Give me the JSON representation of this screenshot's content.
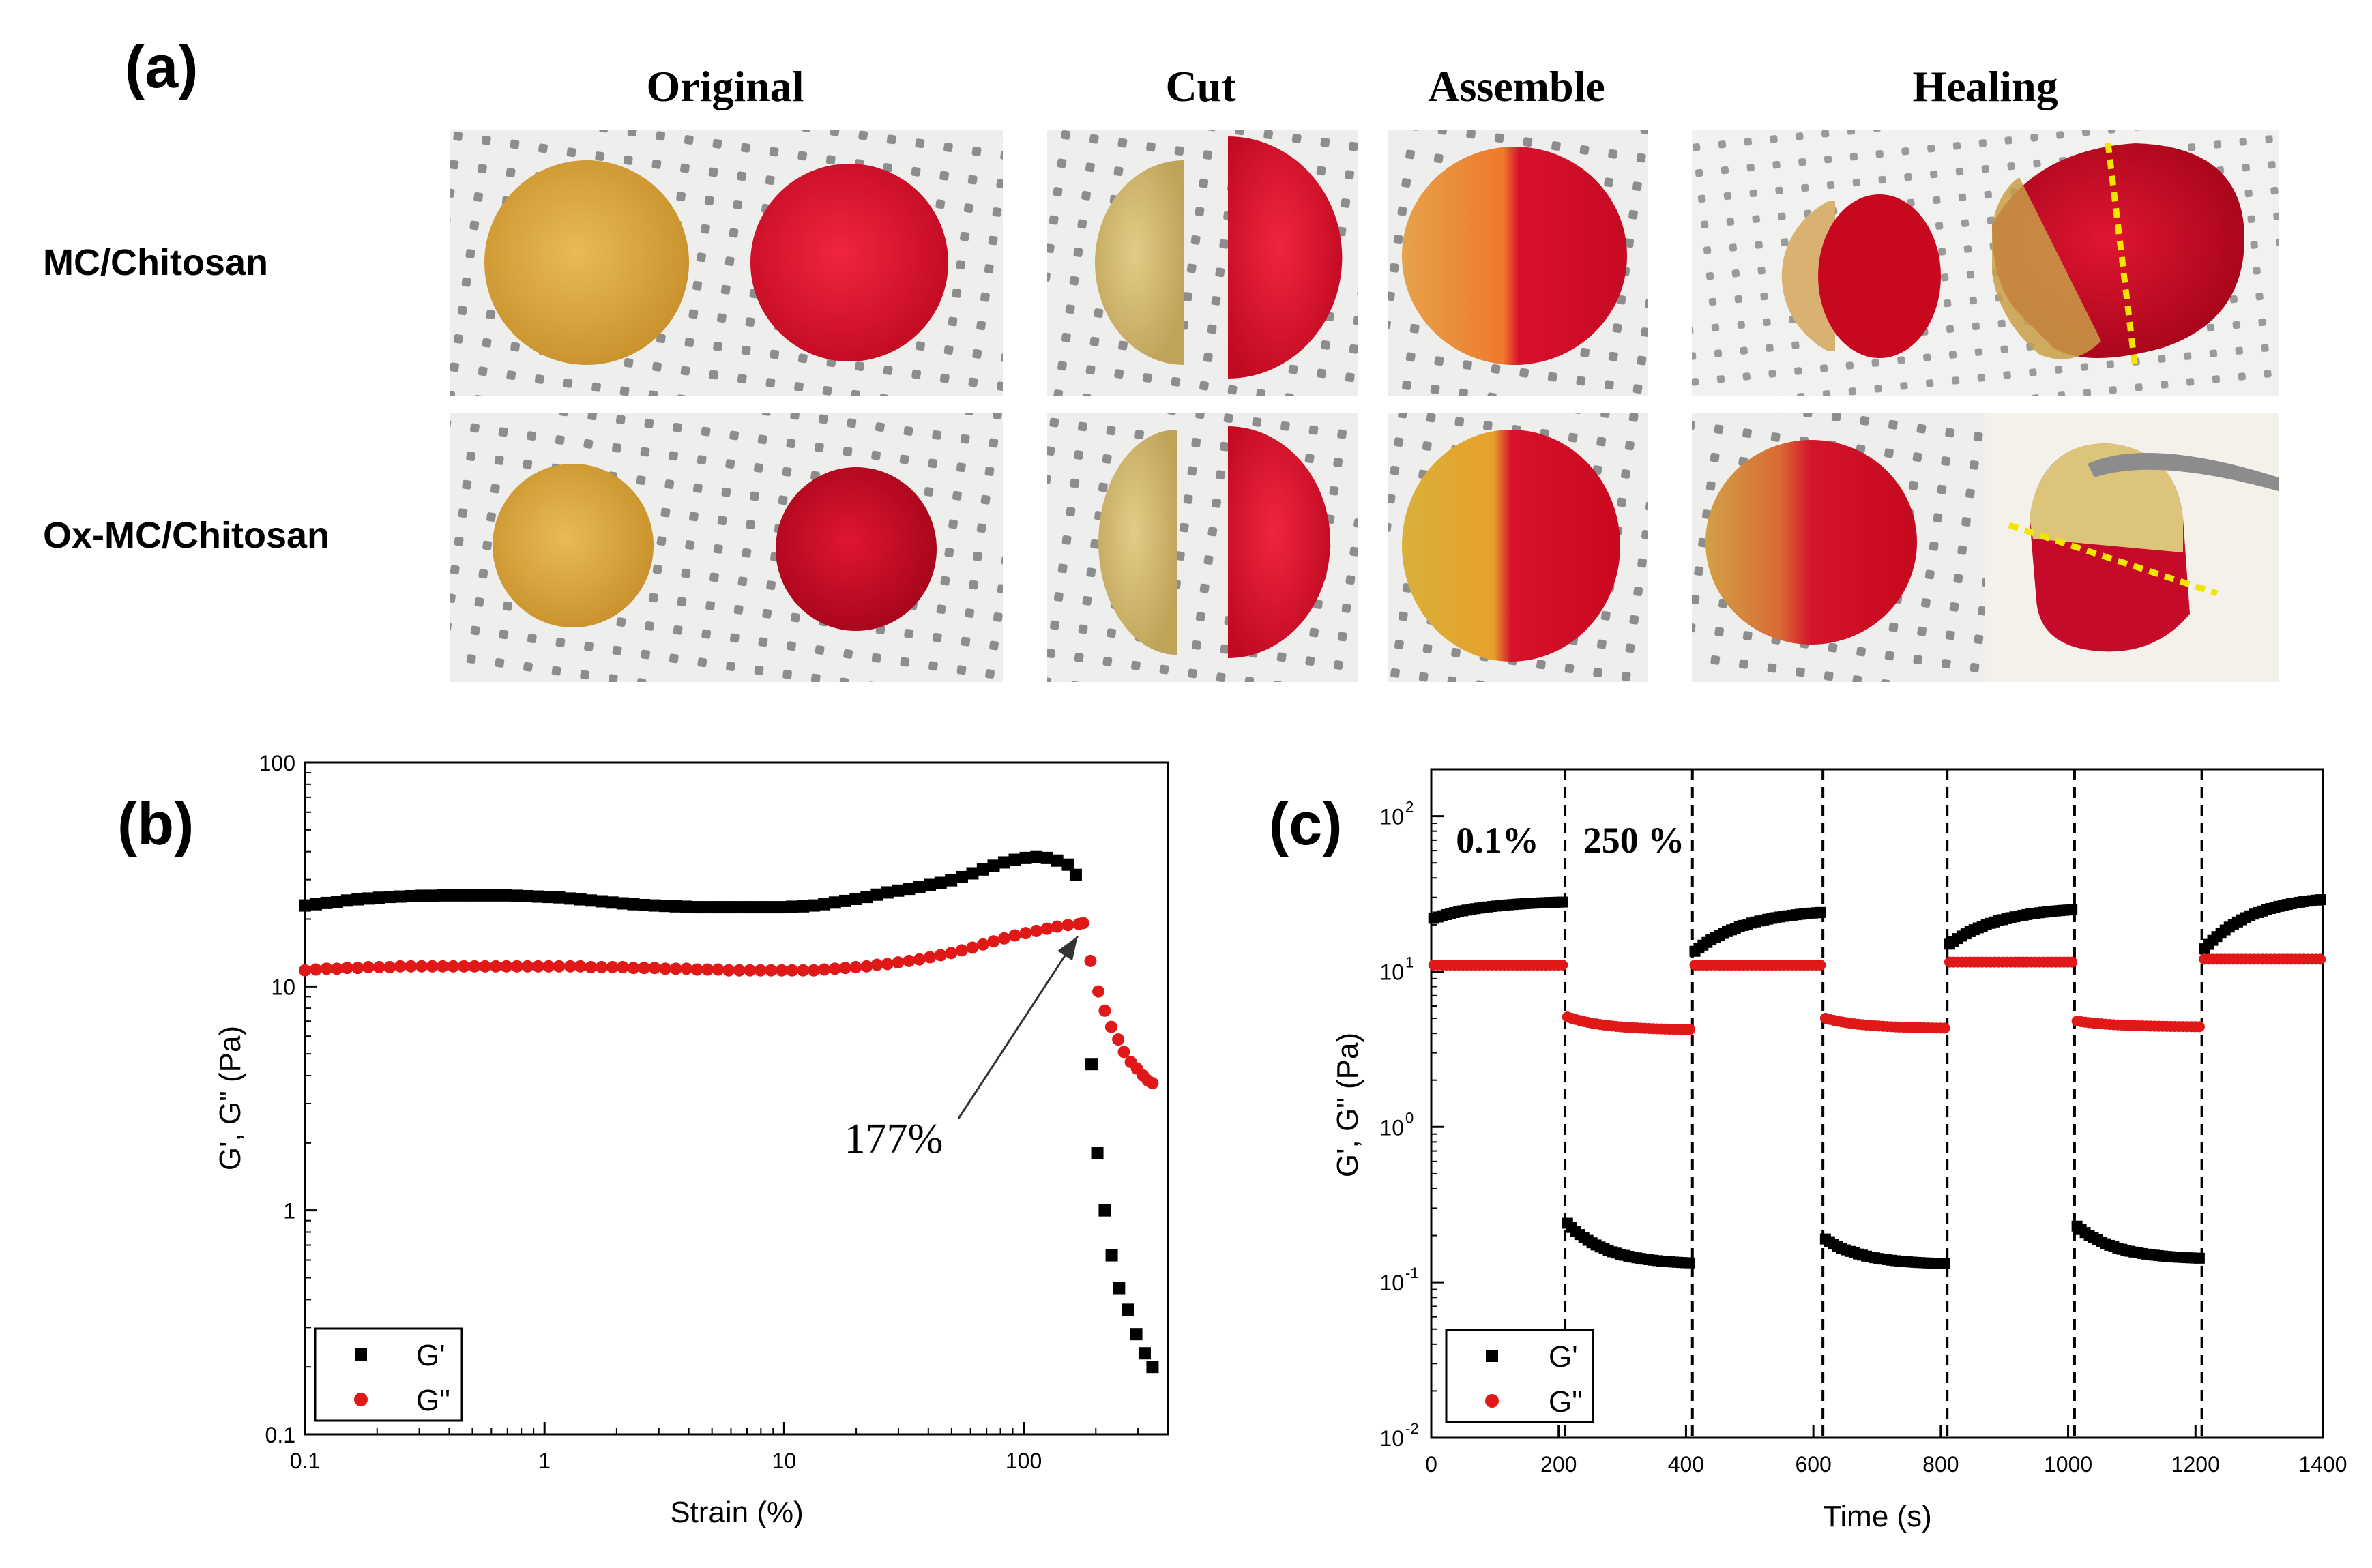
{
  "panel_a": {
    "label": "(a)",
    "columns": [
      "Original",
      "Cut",
      "Assemble",
      "Healing"
    ],
    "rows": [
      "MC/Chitosan",
      "Ox-MC/Chitosan"
    ]
  },
  "colors": {
    "yellow_gel": "#d9a73c",
    "red_gel": "#d4102c",
    "dark_red_gel": "#c3071f",
    "mesh_bg": "#ececec",
    "dot": "#8a8a8a",
    "g_prime": "#000000",
    "g_double": "#e01818",
    "guide": "#f2e600"
  },
  "chart_data": [
    {
      "id": "b",
      "label": "(b)",
      "type": "scatter",
      "xlabel": "Strain (%)",
      "ylabel": "G', G\" (Pa)",
      "xscale": "log",
      "yscale": "log",
      "xlim": [
        0.1,
        400
      ],
      "ylim": [
        0.1,
        100
      ],
      "xticks": [
        "0.1",
        "1",
        "10",
        "100"
      ],
      "yticks": [
        "0.1",
        "1",
        "10",
        "100"
      ],
      "annotation": "177%",
      "annotation_target": [
        177,
        19
      ],
      "legend": [
        "G'",
        "G\""
      ],
      "legend_position": "bottom-left",
      "series": [
        {
          "name": "G'",
          "marker": "square",
          "x": [
            0.1,
            0.111,
            0.123,
            0.136,
            0.15,
            0.166,
            0.184,
            0.204,
            0.226,
            0.25,
            0.277,
            0.307,
            0.34,
            0.376,
            0.416,
            0.461,
            0.51,
            0.565,
            0.626,
            0.693,
            0.767,
            0.849,
            0.94,
            1.04,
            1.15,
            1.28,
            1.41,
            1.56,
            1.73,
            1.92,
            2.12,
            2.35,
            2.6,
            2.88,
            3.19,
            3.53,
            3.91,
            4.33,
            4.79,
            5.3,
            5.87,
            6.5,
            7.2,
            7.97,
            8.82,
            9.77,
            10.8,
            12,
            13.3,
            14.7,
            16.3,
            18,
            19.9,
            22.1,
            24.4,
            27,
            29.9,
            33.2,
            36.7,
            40.6,
            45,
            49.8,
            55.2,
            61.1,
            67.6,
            74.9,
            82.9,
            91.8,
            102,
            113,
            125,
            138,
            153,
            165,
            192,
            203,
            218,
            233,
            250,
            272,
            295,
            320,
            345
          ],
          "y": [
            23,
            23.3,
            23.6,
            23.9,
            24.2,
            24.5,
            24.7,
            24.9,
            25.1,
            25.2,
            25.3,
            25.4,
            25.4,
            25.5,
            25.5,
            25.5,
            25.5,
            25.5,
            25.5,
            25.5,
            25.4,
            25.3,
            25.2,
            25.1,
            25,
            24.7,
            24.5,
            24.2,
            24,
            23.7,
            23.5,
            23.3,
            23.1,
            23,
            22.9,
            22.8,
            22.7,
            22.6,
            22.6,
            22.6,
            22.6,
            22.6,
            22.6,
            22.6,
            22.6,
            22.6,
            22.7,
            22.8,
            23,
            23.3,
            23.7,
            24.1,
            24.6,
            25.1,
            25.7,
            26.3,
            26.8,
            27.3,
            27.8,
            28.4,
            29,
            29.8,
            30.8,
            32,
            33.3,
            34.6,
            35.8,
            36.8,
            37.5,
            37.8,
            37.5,
            36.5,
            35,
            31.5,
            4.5,
            1.8,
            1.0,
            0.63,
            0.45,
            0.36,
            0.28,
            0.23,
            0.2
          ]
        },
        {
          "name": "G\"",
          "marker": "circle",
          "x": [
            0.1,
            0.111,
            0.123,
            0.136,
            0.15,
            0.166,
            0.184,
            0.204,
            0.226,
            0.25,
            0.277,
            0.307,
            0.34,
            0.376,
            0.416,
            0.461,
            0.51,
            0.565,
            0.626,
            0.693,
            0.767,
            0.849,
            0.94,
            1.04,
            1.15,
            1.28,
            1.41,
            1.56,
            1.73,
            1.92,
            2.12,
            2.35,
            2.6,
            2.88,
            3.19,
            3.53,
            3.91,
            4.33,
            4.79,
            5.3,
            5.87,
            6.5,
            7.2,
            7.97,
            8.82,
            9.77,
            10.8,
            12,
            13.3,
            14.7,
            16.3,
            18,
            19.9,
            22.1,
            24.4,
            27,
            29.9,
            33.2,
            36.7,
            40.6,
            45,
            49.8,
            55.2,
            61.1,
            67.6,
            74.9,
            82.9,
            91.8,
            102,
            113,
            125,
            138,
            153,
            170,
            177,
            190,
            205,
            218,
            232,
            248,
            262,
            280,
            297,
            315,
            330,
            345
          ],
          "y": [
            11.8,
            11.9,
            12,
            12,
            12.1,
            12.1,
            12.2,
            12.2,
            12.2,
            12.3,
            12.3,
            12.3,
            12.3,
            12.3,
            12.3,
            12.3,
            12.3,
            12.3,
            12.3,
            12.3,
            12.3,
            12.3,
            12.3,
            12.3,
            12.3,
            12.3,
            12.3,
            12.2,
            12.2,
            12.2,
            12.2,
            12.1,
            12.1,
            12.1,
            12,
            12,
            12,
            11.9,
            11.9,
            11.9,
            11.8,
            11.8,
            11.8,
            11.8,
            11.8,
            11.8,
            11.8,
            11.8,
            11.8,
            11.9,
            12,
            12.1,
            12.2,
            12.3,
            12.5,
            12.6,
            12.8,
            13,
            13.2,
            13.5,
            13.8,
            14.1,
            14.5,
            14.9,
            15.4,
            15.9,
            16.4,
            16.9,
            17.3,
            17.7,
            18.1,
            18.5,
            18.8,
            19,
            19.2,
            13,
            9.5,
            7.8,
            6.6,
            5.8,
            5.1,
            4.6,
            4.3,
            4.0,
            3.8,
            3.7
          ]
        }
      ]
    },
    {
      "id": "c",
      "label": "(c)",
      "type": "scatter",
      "xlabel": "Time (s)",
      "ylabel": "G', G\" (Pa)",
      "xscale": "linear",
      "yscale": "log",
      "xlim": [
        0,
        1400
      ],
      "ylim": [
        0.01,
        200
      ],
      "xticks": [
        "0",
        "200",
        "400",
        "600",
        "800",
        "1000",
        "1200",
        "1400"
      ],
      "ytick_labels": [
        "10",
        "10",
        "10",
        "10",
        "10"
      ],
      "ytick_exponents": [
        "-2",
        "-1",
        "0",
        "1",
        "2"
      ],
      "ytick_values": [
        0.01,
        0.1,
        1,
        10,
        100
      ],
      "strain_labels": [
        "0.1%",
        "250 %"
      ],
      "switch_times": [
        210,
        410,
        615,
        810,
        1010,
        1210
      ],
      "legend": [
        "G'",
        "G\""
      ],
      "legend_position": "bottom-left",
      "segments": [
        {
          "t0": 0,
          "t1": 210,
          "strain": "low",
          "g_prime": [
            22,
            28
          ],
          "g_double": [
            11,
            11
          ]
        },
        {
          "t0": 210,
          "t1": 410,
          "strain": "high",
          "g_prime": [
            0.24,
            0.13
          ],
          "g_double": [
            5.1,
            4.2
          ]
        },
        {
          "t0": 410,
          "t1": 615,
          "strain": "low",
          "g_prime": [
            13.5,
            24
          ],
          "g_double": [
            11,
            11
          ]
        },
        {
          "t0": 615,
          "t1": 810,
          "strain": "high",
          "g_prime": [
            0.19,
            0.13
          ],
          "g_double": [
            5.0,
            4.3
          ]
        },
        {
          "t0": 810,
          "t1": 1010,
          "strain": "low",
          "g_prime": [
            15,
            25
          ],
          "g_double": [
            11.5,
            11.5
          ]
        },
        {
          "t0": 1010,
          "t1": 1210,
          "strain": "high",
          "g_prime": [
            0.23,
            0.14
          ],
          "g_double": [
            4.8,
            4.4
          ]
        },
        {
          "t0": 1210,
          "t1": 1400,
          "strain": "low",
          "g_prime": [
            14,
            29
          ],
          "g_double": [
            12,
            12
          ]
        }
      ]
    }
  ]
}
